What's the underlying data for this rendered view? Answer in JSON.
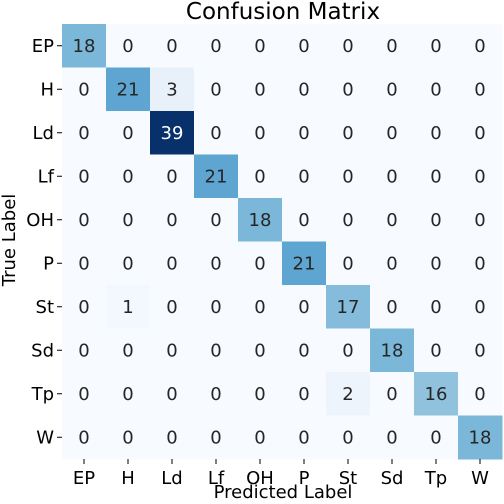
{
  "chart_data": {
    "type": "heatmap",
    "title": "Confusion Matrix",
    "xlabel": "Predicted Label",
    "ylabel": "True Label",
    "x_categories": [
      "EP",
      "H",
      "Ld",
      "Lf",
      "OH",
      "P",
      "St",
      "Sd",
      "Tp",
      "W"
    ],
    "y_categories": [
      "EP",
      "H",
      "Ld",
      "Lf",
      "OH",
      "P",
      "St",
      "Sd",
      "Tp",
      "W"
    ],
    "values": [
      [
        18,
        0,
        0,
        0,
        0,
        0,
        0,
        0,
        0,
        0
      ],
      [
        0,
        21,
        3,
        0,
        0,
        0,
        0,
        0,
        0,
        0
      ],
      [
        0,
        0,
        39,
        0,
        0,
        0,
        0,
        0,
        0,
        0
      ],
      [
        0,
        0,
        0,
        21,
        0,
        0,
        0,
        0,
        0,
        0
      ],
      [
        0,
        0,
        0,
        0,
        18,
        0,
        0,
        0,
        0,
        0
      ],
      [
        0,
        0,
        0,
        0,
        0,
        21,
        0,
        0,
        0,
        0
      ],
      [
        0,
        1,
        0,
        0,
        0,
        0,
        17,
        0,
        0,
        0
      ],
      [
        0,
        0,
        0,
        0,
        0,
        0,
        0,
        18,
        0,
        0
      ],
      [
        0,
        0,
        0,
        0,
        0,
        0,
        2,
        0,
        16,
        0
      ],
      [
        0,
        0,
        0,
        0,
        0,
        0,
        0,
        0,
        0,
        18
      ]
    ],
    "color_scale": "Blues",
    "vmin": 0,
    "vmax": 39,
    "colors": {
      "low": "#f7fbff",
      "high": "#08306b"
    }
  }
}
